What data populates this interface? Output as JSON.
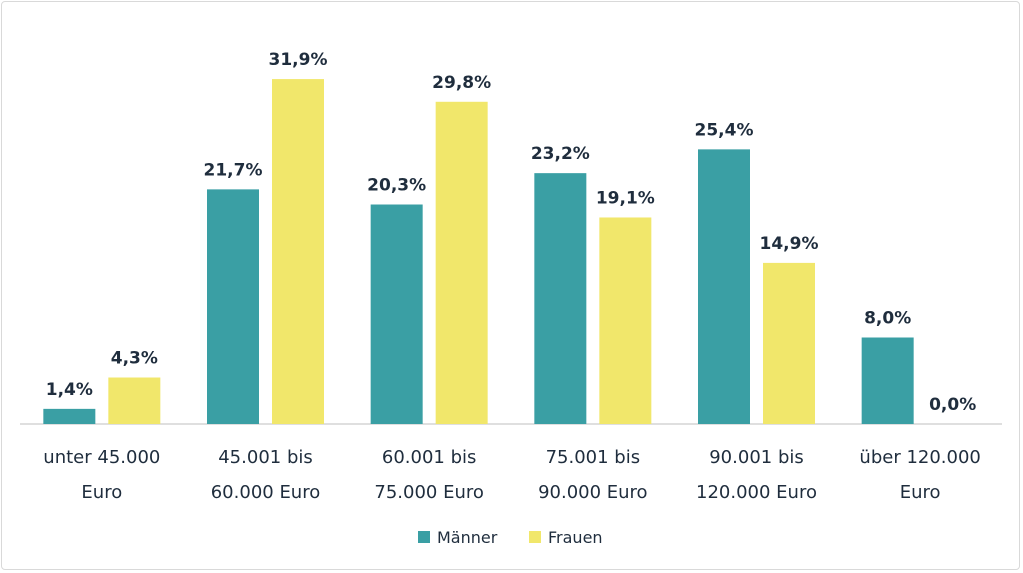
{
  "colors": {
    "maenner": "#3a9fa4",
    "frauen": "#f1e76b",
    "axis": "#bfbfbf",
    "text": "#1f2d3d"
  },
  "chart_data": {
    "type": "bar",
    "categories": [
      [
        "unter 45.000",
        "Euro"
      ],
      [
        "45.001 bis",
        "60.000 Euro"
      ],
      [
        "60.001 bis",
        "75.000 Euro"
      ],
      [
        "75.001 bis",
        "90.000 Euro"
      ],
      [
        "90.001 bis",
        "120.000 Euro"
      ],
      [
        "über 120.000",
        "Euro"
      ]
    ],
    "series": [
      {
        "name": "Männer",
        "values": [
          1.4,
          21.7,
          20.3,
          23.2,
          25.4,
          8.0
        ],
        "labels": [
          "1,4%",
          "21,7%",
          "20,3%",
          "23,2%",
          "25,4%",
          "8,0%"
        ]
      },
      {
        "name": "Frauen",
        "values": [
          4.3,
          31.9,
          29.8,
          19.1,
          14.9,
          0.0
        ],
        "labels": [
          "4,3%",
          "31,9%",
          "29,8%",
          "19,1%",
          "14,9%",
          "0,0%"
        ]
      }
    ],
    "ylim": [
      0,
      32
    ],
    "legend_position": "bottom",
    "grid": false
  }
}
